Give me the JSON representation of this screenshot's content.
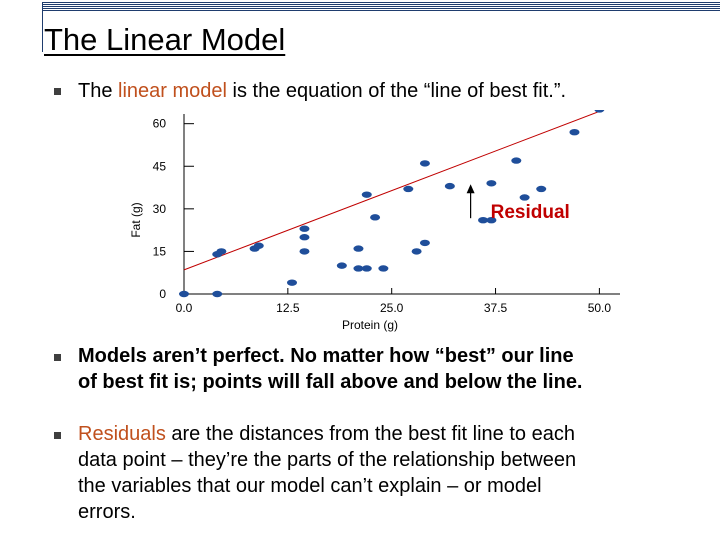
{
  "slide": {
    "title": "The Linear Model",
    "bullet1": {
      "pre": "The ",
      "highlight": "linear model",
      "post": " is the equation of the “line of best fit.”."
    },
    "bullet2": {
      "line1": "Models aren’t perfect.  No matter how “best” our line",
      "line2": "of best fit is; points will fall above and below the line."
    },
    "bullet3": {
      "highlight": "Residuals",
      "line1_rest": " are the distances from the best fit line to each",
      "line2": "data point – they’re the parts of the relationship between",
      "line3": "the variables that our model can’t explain – or model",
      "line4": "errors."
    }
  },
  "colors": {
    "accent_text": "#c0501d",
    "point": "#1f4e9a",
    "fit_line": "#c00000",
    "residual_label": "#c00000"
  },
  "chart_data": {
    "type": "scatter",
    "xlabel": "Protein (g)",
    "ylabel": "Fat (g)",
    "xlim": [
      0,
      52
    ],
    "ylim": [
      0,
      62
    ],
    "x_ticks": [
      "0.0",
      "12.5",
      "25.0",
      "37.5",
      "50.0"
    ],
    "x_tick_values": [
      0,
      12.5,
      25,
      37.5,
      50
    ],
    "y_ticks": [
      "0",
      "15",
      "30",
      "45",
      "60"
    ],
    "y_tick_values": [
      0,
      15,
      30,
      45,
      60
    ],
    "grid": false,
    "points": [
      {
        "x": 0,
        "y": 0
      },
      {
        "x": 4,
        "y": 0
      },
      {
        "x": 4,
        "y": 14
      },
      {
        "x": 4.5,
        "y": 15
      },
      {
        "x": 8.5,
        "y": 16
      },
      {
        "x": 9,
        "y": 17
      },
      {
        "x": 13,
        "y": 4
      },
      {
        "x": 14.5,
        "y": 15
      },
      {
        "x": 14.5,
        "y": 20
      },
      {
        "x": 14.5,
        "y": 23
      },
      {
        "x": 19,
        "y": 10
      },
      {
        "x": 21,
        "y": 9
      },
      {
        "x": 22,
        "y": 9
      },
      {
        "x": 24,
        "y": 9
      },
      {
        "x": 21,
        "y": 16
      },
      {
        "x": 22,
        "y": 35
      },
      {
        "x": 23,
        "y": 27
      },
      {
        "x": 27,
        "y": 37
      },
      {
        "x": 28,
        "y": 15
      },
      {
        "x": 29,
        "y": 18
      },
      {
        "x": 29,
        "y": 46
      },
      {
        "x": 32,
        "y": 38
      },
      {
        "x": 36,
        "y": 26
      },
      {
        "x": 37,
        "y": 26
      },
      {
        "x": 37,
        "y": 39
      },
      {
        "x": 40,
        "y": 47
      },
      {
        "x": 41,
        "y": 34
      },
      {
        "x": 43,
        "y": 37
      },
      {
        "x": 47,
        "y": 57
      },
      {
        "x": 50,
        "y": 65
      }
    ],
    "fit_line": {
      "x": [
        0,
        51.5
      ],
      "y": [
        8.5,
        66
      ]
    },
    "annotation": {
      "text": "Residual",
      "x": 34.5,
      "y_from": 26,
      "y_to": 39
    }
  }
}
